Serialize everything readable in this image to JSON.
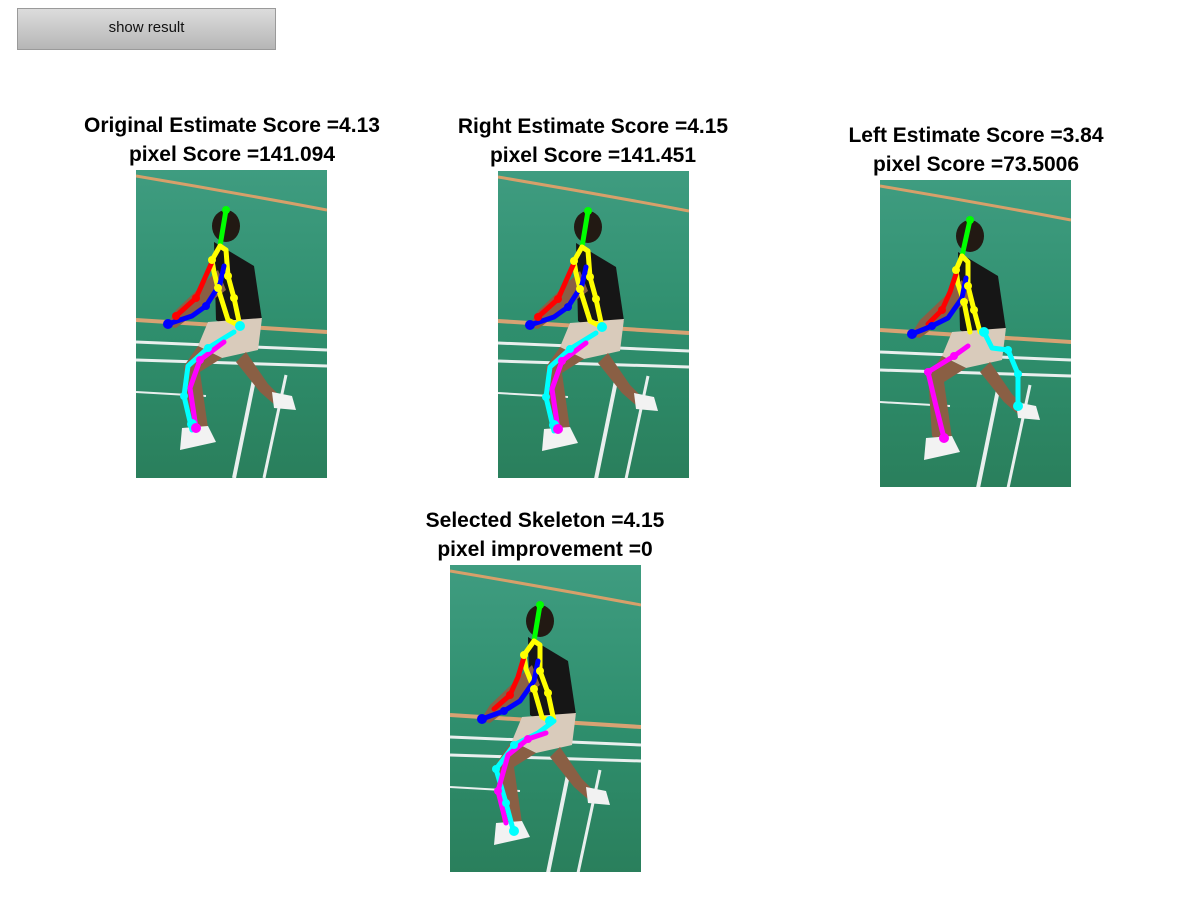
{
  "toolbar": {
    "show_result_label": "show result"
  },
  "panels": [
    {
      "id": "original",
      "score_line": "Original Estimate Score =4.13",
      "pixel_line": "pixel Score =141.094"
    },
    {
      "id": "right",
      "score_line": "Right Estimate Score =4.15",
      "pixel_line": "pixel Score =141.451"
    },
    {
      "id": "left",
      "score_line": "Left Estimate Score =3.84",
      "pixel_line": "pixel Score =73.5006"
    },
    {
      "id": "selected",
      "score_line": "Selected Skeleton =4.15",
      "pixel_line": "pixel improvement =0"
    }
  ],
  "skeleton_colors": {
    "head": "#00ff00",
    "torso": "#ffff00",
    "right_arm": "#ff0000",
    "left_arm": "#0000ff",
    "leg_a": "#ff00ff",
    "leg_b": "#00ffff"
  }
}
